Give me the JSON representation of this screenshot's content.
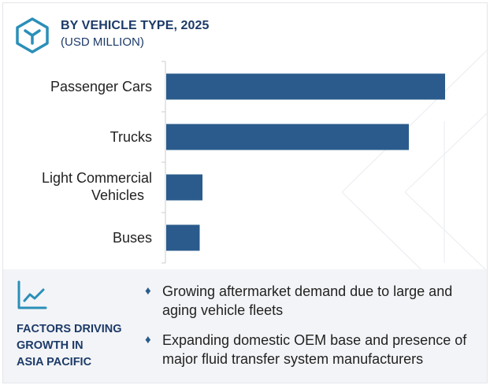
{
  "header": {
    "title": "BY VEHICLE TYPE, 2025",
    "subtitle": "(USD MILLION)",
    "icon": "cube-icon"
  },
  "chart_data": {
    "type": "bar",
    "orientation": "horizontal",
    "categories": [
      "Passenger Cars",
      "Trucks",
      "Light Commercial Vehicles",
      "Buses"
    ],
    "values": [
      100,
      87,
      13,
      12
    ],
    "xlim": [
      0,
      100
    ],
    "grid": false,
    "bar_color": "#2a5b8c",
    "axis_labels_shown": false
  },
  "footer": {
    "icon": "line-chart-icon",
    "title_lines": [
      "FACTORS DRIVING",
      "GROWTH IN",
      "ASIA PACIFIC"
    ],
    "bullet_glyph": "♦",
    "factors": [
      "Growing aftermarket demand due to large and aging vehicle fleets",
      "Expanding domestic OEM base and presence of major fluid transfer system manufacturers"
    ]
  },
  "colors": {
    "brand": "#1c3a68",
    "accent": "#2a5b8c",
    "icon_teal": "#2a8fb8",
    "footer_bg": "#f3f4f7"
  }
}
